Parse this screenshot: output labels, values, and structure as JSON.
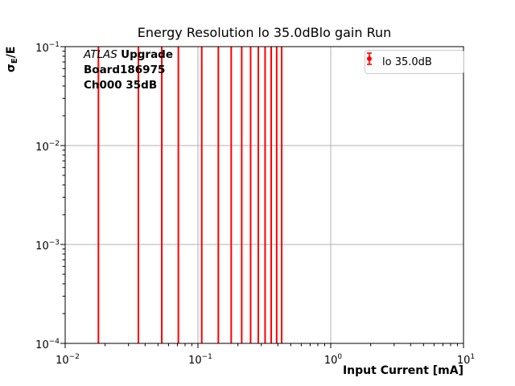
{
  "title": "Energy Resolution lo 35.0dBlo gain Run",
  "axis": {
    "xlabel": "Input Current [mA]",
    "ylabel_sigma": "σ",
    "ylabel_sub": "E",
    "ylabel_rest": "/E"
  },
  "annotation": {
    "experiment": "ATLAS",
    "upgrade": "Upgrade",
    "board": "Board186975",
    "channel": "Ch000 35dB"
  },
  "legend": {
    "label": "lo 35.0dB",
    "marker_color": "#ff0000"
  },
  "chart_data": {
    "type": "errorbar",
    "title": "Energy Resolution lo 35.0dBlo gain Run",
    "xlabel": "Input Current [mA]",
    "ylabel": "σ_E/E",
    "xscale": "log",
    "yscale": "log",
    "xlim": [
      0.01,
      10
    ],
    "ylim": [
      0.0001,
      0.1
    ],
    "x_tick_exponents": [
      -2,
      -1,
      0,
      1
    ],
    "y_tick_exponents": [
      -1,
      -2,
      -3,
      -4
    ],
    "grid": "major",
    "legend_position": "upper right",
    "series": [
      {
        "name": "lo 35.0dB",
        "color": "#ff0000",
        "x_mA": [
          0.0178,
          0.0356,
          0.0534,
          0.0712,
          0.1068,
          0.1424,
          0.178,
          0.2136,
          0.2492,
          0.2848,
          0.3204,
          0.356,
          0.3916,
          0.4272
        ],
        "bars_span_full_y_range": true
      }
    ],
    "colors": {
      "grid": "#b0b0b0",
      "axes": "#000000",
      "error_bars": "#ff0000"
    }
  }
}
